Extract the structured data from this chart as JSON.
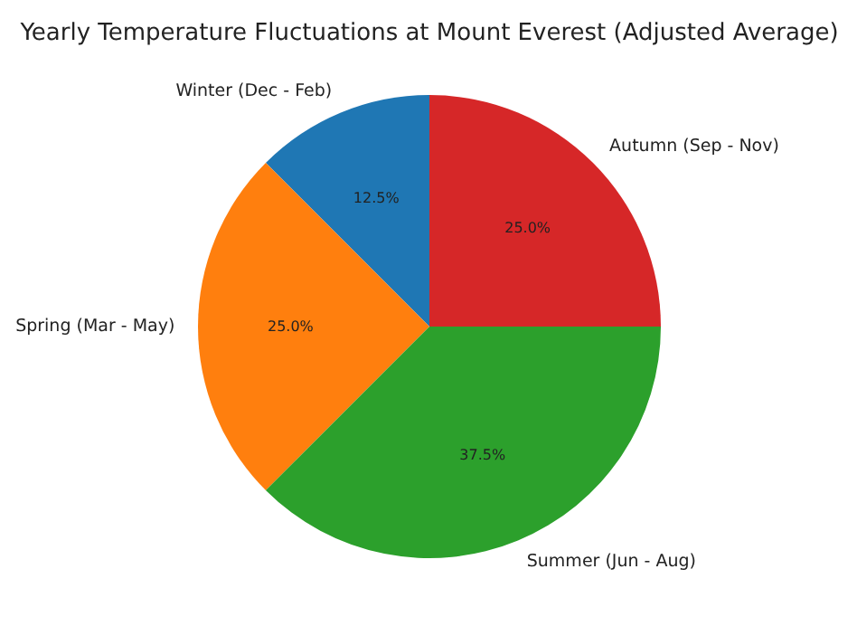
{
  "chart_data": {
    "type": "pie",
    "title": "Yearly Temperature Fluctuations at Mount Everest (Adjusted Average)",
    "categories": [
      "Winter (Dec - Feb)",
      "Spring (Mar - May)",
      "Summer (Jun - Aug)",
      "Autumn (Sep - Nov)"
    ],
    "values": [
      12.5,
      25,
      37.5,
      25
    ],
    "colors": [
      "#1f77b4",
      "#ff7f0e",
      "#2ca02c",
      "#d62728"
    ],
    "value_labels": [
      "12.5%",
      "25.0%",
      "37.5%",
      "25.0%"
    ]
  }
}
